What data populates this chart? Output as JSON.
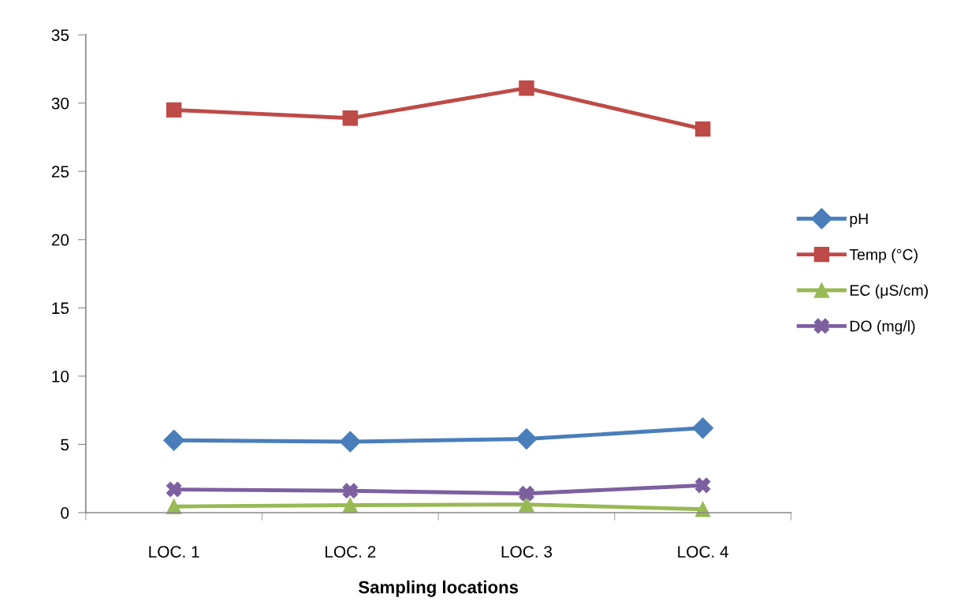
{
  "chart_data": {
    "type": "line",
    "xlabel": "Sampling locations",
    "categories": [
      "LOC. 1",
      "LOC. 2",
      "LOC. 3",
      "LOC. 4"
    ],
    "series": [
      {
        "name": "pH",
        "color": "#4a7ebb",
        "marker": "diamond",
        "values": [
          5.3,
          5.2,
          5.4,
          6.2
        ]
      },
      {
        "name": "Temp (°C)",
        "color": "#be4b48",
        "marker": "square",
        "values": [
          29.5,
          28.9,
          31.1,
          28.1
        ]
      },
      {
        "name": "EC (μS/cm)",
        "color": "#98b954",
        "marker": "triangle",
        "values": [
          0.45,
          0.55,
          0.6,
          0.25
        ]
      },
      {
        "name": "DO (mg/l)",
        "color": "#7d60a0",
        "marker": "cross",
        "values": [
          1.7,
          1.6,
          1.4,
          2.0
        ]
      }
    ],
    "ylim": [
      0,
      35
    ],
    "yticks": [
      0,
      5,
      10,
      15,
      20,
      25,
      30,
      35
    ],
    "grid": false,
    "legend": "right",
    "line_style": "solid"
  }
}
